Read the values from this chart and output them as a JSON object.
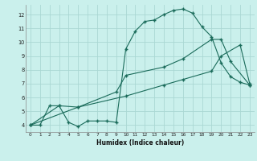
{
  "background_color": "#caf0ec",
  "grid_color": "#aad8d3",
  "line_color": "#1a6b5a",
  "x_label": "Humidex (Indice chaleur)",
  "xlim": [
    -0.5,
    23.5
  ],
  "ylim": [
    3.5,
    12.7
  ],
  "yticks": [
    4,
    5,
    6,
    7,
    8,
    9,
    10,
    11,
    12
  ],
  "xticks": [
    0,
    1,
    2,
    3,
    4,
    5,
    6,
    7,
    8,
    9,
    10,
    11,
    12,
    13,
    14,
    15,
    16,
    17,
    18,
    19,
    20,
    21,
    22,
    23
  ],
  "curve1_x": [
    0,
    1,
    2,
    3,
    4,
    5,
    6,
    7,
    8,
    9,
    10,
    11,
    12,
    13,
    14,
    15,
    16,
    17,
    18,
    19,
    20,
    21,
    22,
    23
  ],
  "curve1_y": [
    4.0,
    4.0,
    5.4,
    5.4,
    4.2,
    3.9,
    4.3,
    4.3,
    4.3,
    4.2,
    9.5,
    10.8,
    11.5,
    11.6,
    12.0,
    12.3,
    12.4,
    12.1,
    11.1,
    10.4,
    8.5,
    7.5,
    7.1,
    6.9
  ],
  "curve2_x": [
    0,
    3,
    5,
    9,
    10,
    14,
    16,
    19,
    20,
    21,
    23
  ],
  "curve2_y": [
    4.0,
    5.4,
    5.3,
    6.4,
    7.6,
    8.2,
    8.8,
    10.2,
    10.2,
    8.6,
    6.9
  ],
  "curve3_x": [
    0,
    5,
    10,
    14,
    16,
    19,
    20,
    22,
    23
  ],
  "curve3_y": [
    4.0,
    5.3,
    6.1,
    6.9,
    7.3,
    7.9,
    9.0,
    9.8,
    7.0
  ]
}
